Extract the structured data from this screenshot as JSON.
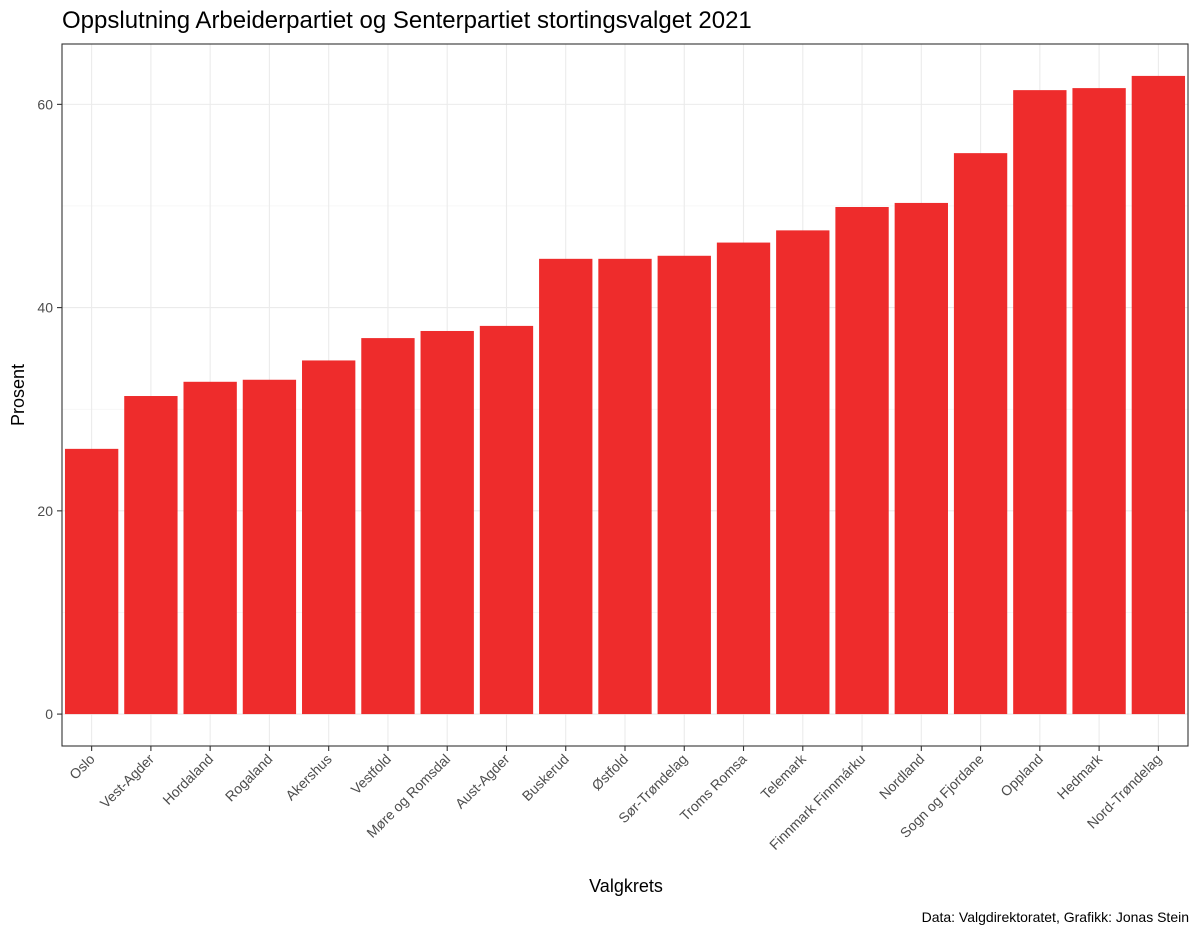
{
  "chart_data": {
    "type": "bar",
    "title": "Oppslutning Arbeiderpartiet og Senterpartiet stortingsvalget 2021",
    "xlabel": "Valgkrets",
    "ylabel": "Prosent",
    "caption": "Data: Valgdirektoratet, Grafikk: Jonas Stein",
    "categories": [
      "Oslo",
      "Vest-Agder",
      "Hordaland",
      "Rogaland",
      "Akershus",
      "Vestfold",
      "Møre og Romsdal",
      "Aust-Agder",
      "Buskerud",
      "Østfold",
      "Sør-Trøndelag",
      "Troms Romsa",
      "Telemark",
      "Finnmark Finnmárku",
      "Nordland",
      "Sogn og Fjordane",
      "Oppland",
      "Hedmark",
      "Nord-Trøndelag"
    ],
    "values": [
      26.1,
      31.3,
      32.7,
      32.9,
      34.8,
      37.0,
      37.7,
      38.2,
      44.8,
      44.8,
      45.1,
      46.4,
      47.6,
      49.9,
      50.3,
      55.2,
      61.4,
      61.6,
      62.8
    ],
    "ylim": [
      -3.14,
      65.94
    ],
    "yticks": [
      0,
      20,
      40,
      60
    ],
    "bar_color": "#EE2C2C",
    "grid": true,
    "legend": "none"
  }
}
